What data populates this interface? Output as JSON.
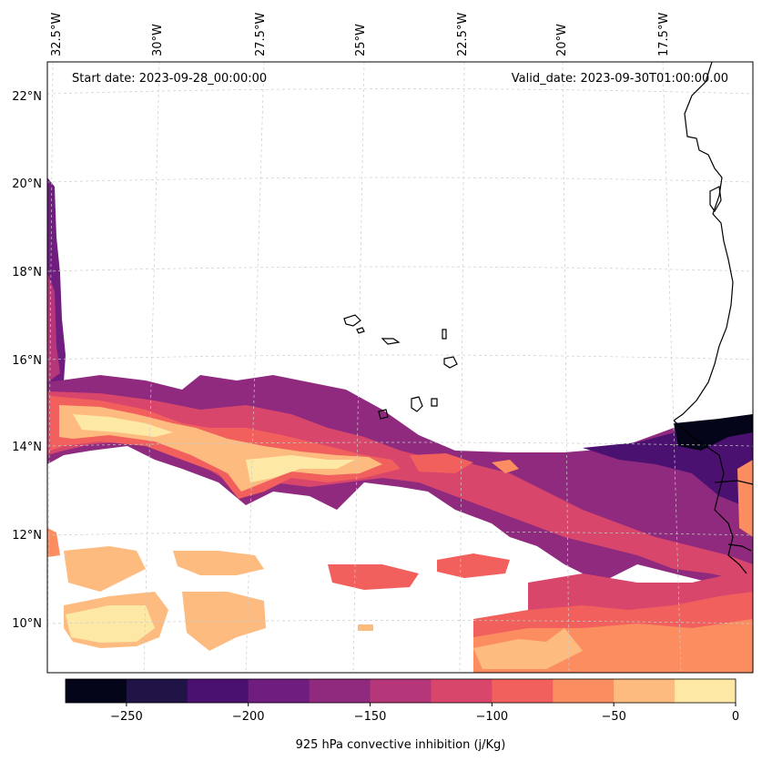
{
  "header": {
    "start_date": "Start date: 2023-09-28_00:00:00",
    "valid_date": "Valid_date: 2023-09-30T01:00:00.00"
  },
  "lon_labels": [
    "32.5°W",
    "30°W",
    "27.5°W",
    "25°W",
    "22.5°W",
    "20°W",
    "17.5°W"
  ],
  "lat_labels": [
    "22°N",
    "20°N",
    "18°N",
    "16°N",
    "14°N",
    "12°N",
    "10°N"
  ],
  "colorbar": {
    "label": "925 hPa convective inhibition (j/Kg)",
    "min": -275,
    "max": 0,
    "ticks": [
      "−250",
      "−200",
      "−150",
      "−100",
      "−50",
      "0"
    ],
    "colors": [
      "#05051a",
      "#1f1445",
      "#4b1171",
      "#701d80",
      "#8f2a7e",
      "#b53679",
      "#d8466c",
      "#f1605d",
      "#fb8d61",
      "#fdbb7f",
      "#fde9a5"
    ]
  },
  "colors": {
    "gridline": "#cccccc",
    "coastline": "#000000",
    "background": "#ffffff"
  }
}
